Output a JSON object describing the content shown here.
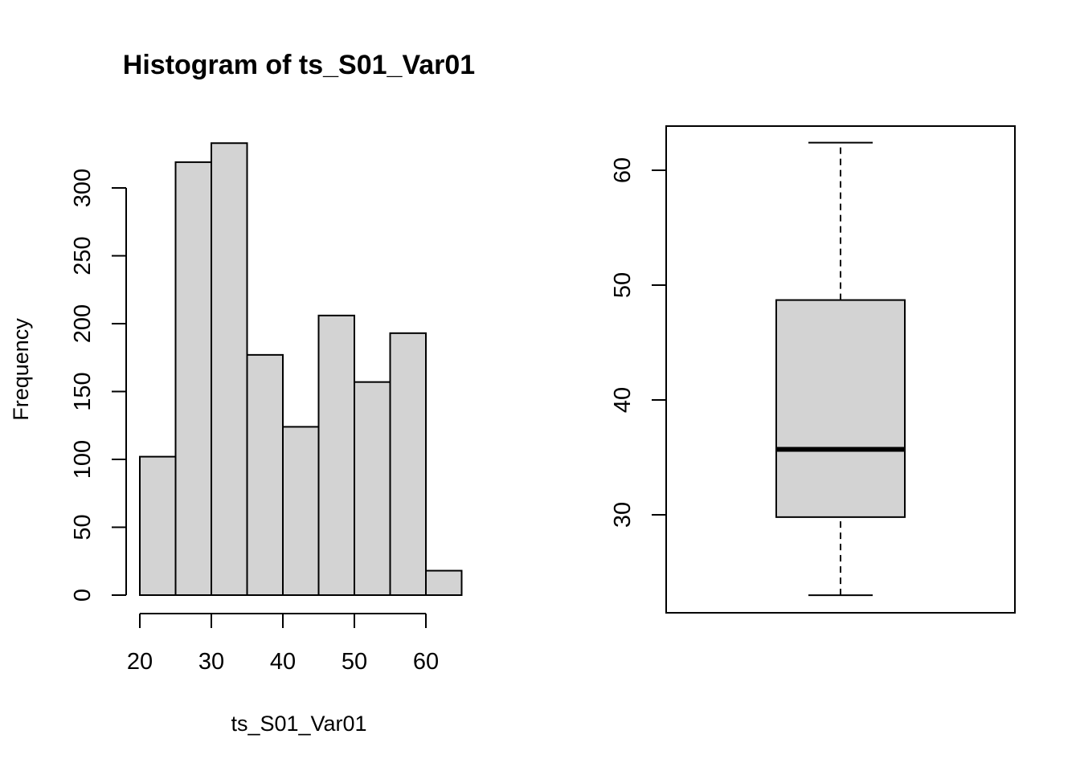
{
  "chart_data": [
    {
      "type": "bar",
      "subtype": "histogram",
      "title": "Histogram of ts_S01_Var01",
      "xlabel": "ts_S01_Var01",
      "ylabel": "Frequency",
      "bin_edges": [
        20,
        25,
        30,
        35,
        40,
        45,
        50,
        55,
        60,
        65
      ],
      "values": [
        102,
        319,
        333,
        177,
        124,
        206,
        157,
        193,
        18
      ],
      "xticks": [
        20,
        30,
        40,
        50,
        60
      ],
      "yticks": [
        0,
        50,
        100,
        150,
        200,
        250,
        300
      ],
      "xlim": [
        20,
        65
      ],
      "ylim": [
        0,
        333
      ],
      "bar_color": "#d3d3d3",
      "grid": false
    },
    {
      "type": "boxplot",
      "title": "",
      "xlabel": "",
      "ylabel": "",
      "stats": {
        "min": 23.0,
        "q1": 29.8,
        "median": 35.7,
        "q3": 48.7,
        "max": 62.4
      },
      "yticks": [
        30,
        40,
        50,
        60
      ],
      "ylim": [
        21.5,
        63.9
      ],
      "box_color": "#d3d3d3",
      "grid": false
    }
  ]
}
